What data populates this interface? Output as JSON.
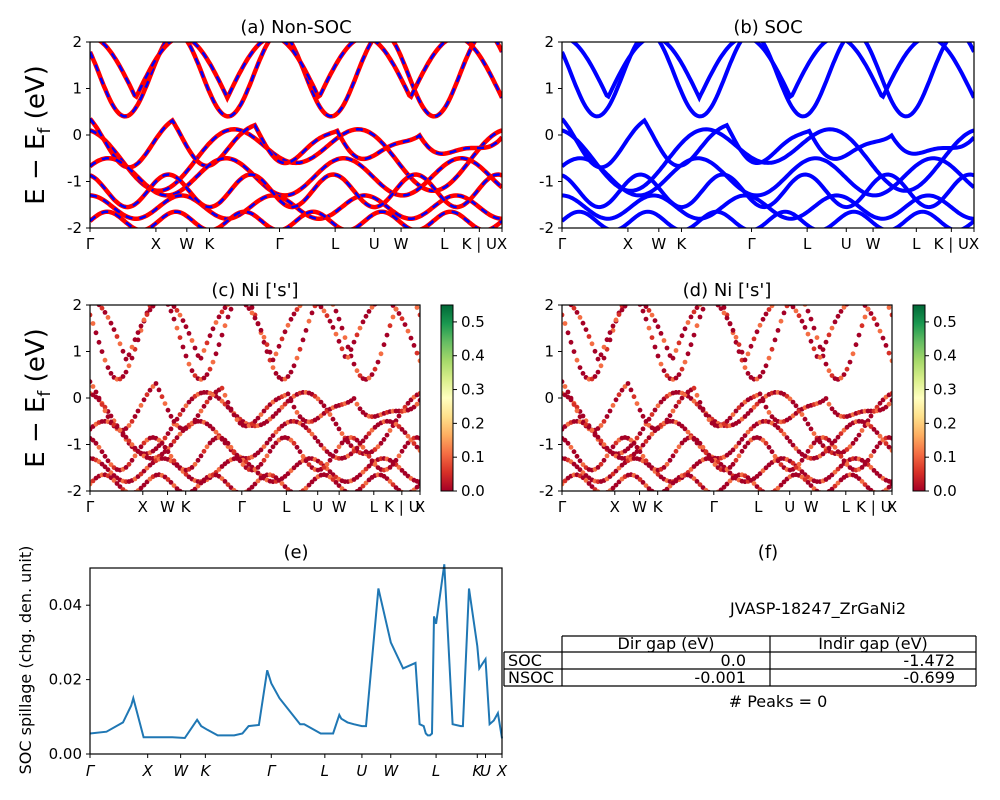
{
  "bandstructure": {
    "ylabel": "E − E",
    "ylabel_sub": "f",
    "ylabel_unit": " (eV)",
    "yticks": [
      2,
      1,
      0,
      -1,
      -2
    ],
    "kpath_labels": [
      "Γ",
      "X",
      "W",
      "K",
      "Γ",
      "L",
      "U",
      "W",
      "L",
      "K | U",
      "X"
    ]
  },
  "colorbar": {
    "ticks": [
      "0.5",
      "0.4",
      "0.3",
      "0.2",
      "0.1",
      "0.0"
    ],
    "colors": [
      "#a50026",
      "#d73027",
      "#f46d43",
      "#fdae61",
      "#fee08b",
      "#ffffbf",
      "#d9ef8b",
      "#a6d96a",
      "#66bd63",
      "#1a9850",
      "#006837"
    ]
  },
  "colors": {
    "nonsoc_a": "#ff0000",
    "nonsoc_b": "#0000ff",
    "soc": "#0000ff",
    "spillage": "#1f77b4"
  },
  "chart_data": [
    {
      "panel": "a",
      "type": "line",
      "title": "(a) Non-SOC",
      "ylim": [
        -2,
        2
      ],
      "xticks": [
        "Γ",
        "X",
        "W",
        "K",
        "Γ",
        "L",
        "U",
        "W",
        "L",
        "K | U",
        "X"
      ]
    },
    {
      "panel": "b",
      "type": "line",
      "title": "(b) SOC",
      "ylim": [
        -2,
        2
      ],
      "xticks": [
        "Γ",
        "X",
        "W",
        "K",
        "Γ",
        "L",
        "U",
        "W",
        "L",
        "K | U",
        "X"
      ]
    },
    {
      "panel": "c",
      "type": "scatter",
      "title": "(c)  Ni ['s']",
      "ylim": [
        -2,
        2
      ],
      "colorbar_range": [
        0,
        0.55
      ],
      "xticks": [
        "Γ",
        "X",
        "W",
        "K",
        "Γ",
        "L",
        "U",
        "W",
        "L",
        "K | U",
        "X"
      ]
    },
    {
      "panel": "d",
      "type": "scatter",
      "title": "(d) Ni ['s']",
      "ylim": [
        -2,
        2
      ],
      "colorbar_range": [
        0,
        0.55
      ],
      "xticks": [
        "Γ",
        "X",
        "W",
        "K",
        "Γ",
        "L",
        "U",
        "W",
        "L",
        "K | U",
        "X"
      ]
    },
    {
      "panel": "e",
      "type": "line",
      "title": "(e)",
      "ylabel": "SOC spillage (chg. den. unit)",
      "ylim": [
        0,
        0.05
      ],
      "yticks": [
        "0.00",
        "0.02",
        "0.04"
      ],
      "xticks": [
        "Γ",
        "X",
        "W",
        "K",
        "Γ",
        "L",
        "U",
        "W",
        "L",
        "K",
        "U",
        "X"
      ],
      "x": [
        0,
        0.04,
        0.08,
        0.1,
        0.105,
        0.13,
        0.16,
        0.17,
        0.2,
        0.23,
        0.26,
        0.27,
        0.285,
        0.31,
        0.35,
        0.37,
        0.385,
        0.41,
        0.43,
        0.44,
        0.46,
        0.51,
        0.52,
        0.56,
        0.59,
        0.605,
        0.61,
        0.625,
        0.64,
        0.66,
        0.67,
        0.7,
        0.73,
        0.76,
        0.79,
        0.8,
        0.81,
        0.815,
        0.82,
        0.825,
        0.83,
        0.835,
        0.84,
        0.86,
        0.88,
        0.9,
        0.905,
        0.92,
        0.94,
        0.945,
        0.96,
        0.97,
        0.98,
        0.99,
        1.0
      ],
      "values": [
        0.0055,
        0.006,
        0.0085,
        0.013,
        0.015,
        0.0045,
        0.0045,
        0.0045,
        0.0045,
        0.0043,
        0.0092,
        0.0075,
        0.0065,
        0.005,
        0.005,
        0.0055,
        0.0075,
        0.0078,
        0.0225,
        0.019,
        0.015,
        0.008,
        0.008,
        0.0055,
        0.0055,
        0.0105,
        0.0095,
        0.0085,
        0.008,
        0.0075,
        0.0075,
        0.0445,
        0.03,
        0.023,
        0.0245,
        0.008,
        0.0075,
        0.0055,
        0.005,
        0.005,
        0.0055,
        0.037,
        0.035,
        0.051,
        0.008,
        0.0075,
        0.0075,
        0.0445,
        0.029,
        0.023,
        0.0255,
        0.008,
        0.009,
        0.011,
        0.0042
      ],
      "xaxis_tick_positions": [
        0,
        0.14,
        0.22,
        0.28,
        0.44,
        0.57,
        0.66,
        0.73,
        0.84,
        0.94,
        0.96,
        1.0
      ]
    },
    {
      "panel": "f",
      "type": "table",
      "title": "(f)",
      "caption": "JVASP-18247_ZrGaNi2",
      "columns": [
        "",
        "Dir gap (eV)",
        "Indir gap (eV)"
      ],
      "rows": [
        [
          "SOC",
          "0.0",
          "-1.472"
        ],
        [
          "NSOC",
          "-0.001",
          "-0.699"
        ]
      ],
      "footer": "# Peaks = 0"
    }
  ]
}
